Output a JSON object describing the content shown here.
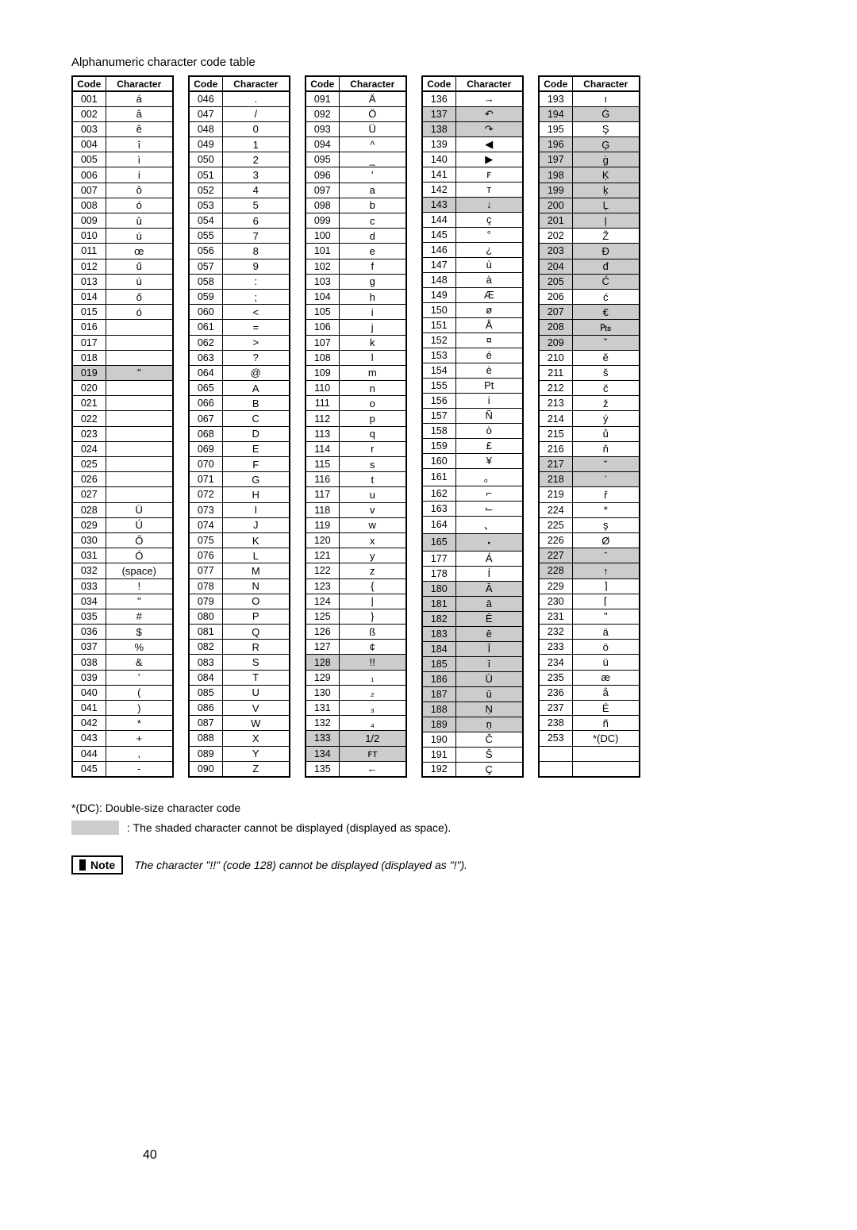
{
  "title": "Alphanumeric character code table",
  "headers": {
    "code": "Code",
    "character": "Character"
  },
  "columns": [
    [
      {
        "code": "001",
        "char": "á"
      },
      {
        "code": "002",
        "char": "â"
      },
      {
        "code": "003",
        "char": "ê"
      },
      {
        "code": "004",
        "char": "î"
      },
      {
        "code": "005",
        "char": "ì"
      },
      {
        "code": "006",
        "char": "í"
      },
      {
        "code": "007",
        "char": "ô"
      },
      {
        "code": "008",
        "char": "ó"
      },
      {
        "code": "009",
        "char": "û"
      },
      {
        "code": "010",
        "char": "ú"
      },
      {
        "code": "011",
        "char": "œ"
      },
      {
        "code": "012",
        "char": "ű"
      },
      {
        "code": "013",
        "char": "ú"
      },
      {
        "code": "014",
        "char": "ő"
      },
      {
        "code": "015",
        "char": "ó"
      },
      {
        "code": "016",
        "char": ""
      },
      {
        "code": "017",
        "char": ""
      },
      {
        "code": "018",
        "char": ""
      },
      {
        "code": "019",
        "char": "\"",
        "shaded": true
      },
      {
        "code": "020",
        "char": ""
      },
      {
        "code": "021",
        "char": ""
      },
      {
        "code": "022",
        "char": ""
      },
      {
        "code": "023",
        "char": ""
      },
      {
        "code": "024",
        "char": ""
      },
      {
        "code": "025",
        "char": ""
      },
      {
        "code": "026",
        "char": ""
      },
      {
        "code": "027",
        "char": ""
      },
      {
        "code": "028",
        "char": "Ü"
      },
      {
        "code": "029",
        "char": "Ú"
      },
      {
        "code": "030",
        "char": "Ő"
      },
      {
        "code": "031",
        "char": "Ó"
      },
      {
        "code": "032",
        "char": "(space)"
      },
      {
        "code": "033",
        "char": "!"
      },
      {
        "code": "034",
        "char": "\""
      },
      {
        "code": "035",
        "char": "#"
      },
      {
        "code": "036",
        "char": "$"
      },
      {
        "code": "037",
        "char": "%"
      },
      {
        "code": "038",
        "char": "&"
      },
      {
        "code": "039",
        "char": "'"
      },
      {
        "code": "040",
        "char": "("
      },
      {
        "code": "041",
        "char": ")"
      },
      {
        "code": "042",
        "char": "*"
      },
      {
        "code": "043",
        "char": "+"
      },
      {
        "code": "044",
        "char": ","
      },
      {
        "code": "045",
        "char": "-"
      }
    ],
    [
      {
        "code": "046",
        "char": "."
      },
      {
        "code": "047",
        "char": "/"
      },
      {
        "code": "048",
        "char": "0"
      },
      {
        "code": "049",
        "char": "1"
      },
      {
        "code": "050",
        "char": "2"
      },
      {
        "code": "051",
        "char": "3"
      },
      {
        "code": "052",
        "char": "4"
      },
      {
        "code": "053",
        "char": "5"
      },
      {
        "code": "054",
        "char": "6"
      },
      {
        "code": "055",
        "char": "7"
      },
      {
        "code": "056",
        "char": "8"
      },
      {
        "code": "057",
        "char": "9"
      },
      {
        "code": "058",
        "char": ":"
      },
      {
        "code": "059",
        "char": ";"
      },
      {
        "code": "060",
        "char": "<"
      },
      {
        "code": "061",
        "char": "="
      },
      {
        "code": "062",
        "char": ">"
      },
      {
        "code": "063",
        "char": "?"
      },
      {
        "code": "064",
        "char": "@"
      },
      {
        "code": "065",
        "char": "A"
      },
      {
        "code": "066",
        "char": "B"
      },
      {
        "code": "067",
        "char": "C"
      },
      {
        "code": "068",
        "char": "D"
      },
      {
        "code": "069",
        "char": "E"
      },
      {
        "code": "070",
        "char": "F"
      },
      {
        "code": "071",
        "char": "G"
      },
      {
        "code": "072",
        "char": "H"
      },
      {
        "code": "073",
        "char": "I"
      },
      {
        "code": "074",
        "char": "J"
      },
      {
        "code": "075",
        "char": "K"
      },
      {
        "code": "076",
        "char": "L"
      },
      {
        "code": "077",
        "char": "M"
      },
      {
        "code": "078",
        "char": "N"
      },
      {
        "code": "079",
        "char": "O"
      },
      {
        "code": "080",
        "char": "P"
      },
      {
        "code": "081",
        "char": "Q"
      },
      {
        "code": "082",
        "char": "R"
      },
      {
        "code": "083",
        "char": "S"
      },
      {
        "code": "084",
        "char": "T"
      },
      {
        "code": "085",
        "char": "U"
      },
      {
        "code": "086",
        "char": "V"
      },
      {
        "code": "087",
        "char": "W"
      },
      {
        "code": "088",
        "char": "X"
      },
      {
        "code": "089",
        "char": "Y"
      },
      {
        "code": "090",
        "char": "Z"
      }
    ],
    [
      {
        "code": "091",
        "char": "Ä"
      },
      {
        "code": "092",
        "char": "Ö"
      },
      {
        "code": "093",
        "char": "Ü"
      },
      {
        "code": "094",
        "char": "^"
      },
      {
        "code": "095",
        "char": "_"
      },
      {
        "code": "096",
        "char": "'"
      },
      {
        "code": "097",
        "char": "a"
      },
      {
        "code": "098",
        "char": "b"
      },
      {
        "code": "099",
        "char": "c"
      },
      {
        "code": "100",
        "char": "d"
      },
      {
        "code": "101",
        "char": "e"
      },
      {
        "code": "102",
        "char": "f"
      },
      {
        "code": "103",
        "char": "g"
      },
      {
        "code": "104",
        "char": "h"
      },
      {
        "code": "105",
        "char": "i"
      },
      {
        "code": "106",
        "char": "j"
      },
      {
        "code": "107",
        "char": "k"
      },
      {
        "code": "108",
        "char": "l"
      },
      {
        "code": "109",
        "char": "m"
      },
      {
        "code": "110",
        "char": "n"
      },
      {
        "code": "111",
        "char": "o"
      },
      {
        "code": "112",
        "char": "p"
      },
      {
        "code": "113",
        "char": "q"
      },
      {
        "code": "114",
        "char": "r"
      },
      {
        "code": "115",
        "char": "s"
      },
      {
        "code": "116",
        "char": "t"
      },
      {
        "code": "117",
        "char": "u"
      },
      {
        "code": "118",
        "char": "v"
      },
      {
        "code": "119",
        "char": "w"
      },
      {
        "code": "120",
        "char": "x"
      },
      {
        "code": "121",
        "char": "y"
      },
      {
        "code": "122",
        "char": "z"
      },
      {
        "code": "123",
        "char": "{"
      },
      {
        "code": "124",
        "char": "|"
      },
      {
        "code": "125",
        "char": "}"
      },
      {
        "code": "126",
        "char": "ß"
      },
      {
        "code": "127",
        "char": "¢"
      },
      {
        "code": "128",
        "char": "!!",
        "shaded": true
      },
      {
        "code": "129",
        "char": "₁"
      },
      {
        "code": "130",
        "char": "₂"
      },
      {
        "code": "131",
        "char": "₃"
      },
      {
        "code": "132",
        "char": "₄"
      },
      {
        "code": "133",
        "char": "1/2",
        "shaded": true
      },
      {
        "code": "134",
        "char": "ꜰᴛ",
        "shaded": true
      },
      {
        "code": "135",
        "char": "←"
      }
    ],
    [
      {
        "code": "136",
        "char": "→"
      },
      {
        "code": "137",
        "char": "↶",
        "shaded": true
      },
      {
        "code": "138",
        "char": "↷",
        "shaded": true
      },
      {
        "code": "139",
        "char": "◀"
      },
      {
        "code": "140",
        "char": "▶"
      },
      {
        "code": "141",
        "char": "ꜰ"
      },
      {
        "code": "142",
        "char": "ᴛ"
      },
      {
        "code": "143",
        "char": "↓",
        "shaded": true
      },
      {
        "code": "144",
        "char": "ç"
      },
      {
        "code": "145",
        "char": "°"
      },
      {
        "code": "146",
        "char": "¿"
      },
      {
        "code": "147",
        "char": "ù"
      },
      {
        "code": "148",
        "char": "à"
      },
      {
        "code": "149",
        "char": "Æ"
      },
      {
        "code": "150",
        "char": "ø"
      },
      {
        "code": "151",
        "char": "Å"
      },
      {
        "code": "152",
        "char": "¤"
      },
      {
        "code": "153",
        "char": "é"
      },
      {
        "code": "154",
        "char": "è"
      },
      {
        "code": "155",
        "char": "Pt"
      },
      {
        "code": "156",
        "char": "i"
      },
      {
        "code": "157",
        "char": "Ñ"
      },
      {
        "code": "158",
        "char": "ò"
      },
      {
        "code": "159",
        "char": "£"
      },
      {
        "code": "160",
        "char": "¥"
      },
      {
        "code": "161",
        "char": "。"
      },
      {
        "code": "162",
        "char": "⌐"
      },
      {
        "code": "163",
        "char": "⌙"
      },
      {
        "code": "164",
        "char": "、"
      },
      {
        "code": "165",
        "char": "・",
        "shaded": true
      },
      {
        "code": "177",
        "char": "Á"
      },
      {
        "code": "178",
        "char": "Í"
      },
      {
        "code": "180",
        "char": "Ā",
        "shaded": true
      },
      {
        "code": "181",
        "char": "ā",
        "shaded": true
      },
      {
        "code": "182",
        "char": "Ē",
        "shaded": true
      },
      {
        "code": "183",
        "char": "ē",
        "shaded": true
      },
      {
        "code": "184",
        "char": "Ī",
        "shaded": true
      },
      {
        "code": "185",
        "char": "ī",
        "shaded": true
      },
      {
        "code": "186",
        "char": "Ū",
        "shaded": true
      },
      {
        "code": "187",
        "char": "ū",
        "shaded": true
      },
      {
        "code": "188",
        "char": "Ņ",
        "shaded": true
      },
      {
        "code": "189",
        "char": "ņ",
        "shaded": true
      },
      {
        "code": "190",
        "char": "Č"
      },
      {
        "code": "191",
        "char": "Š"
      },
      {
        "code": "192",
        "char": "Ç"
      }
    ],
    [
      {
        "code": "193",
        "char": "ı"
      },
      {
        "code": "194",
        "char": "Ġ",
        "shaded": true
      },
      {
        "code": "195",
        "char": "Ş"
      },
      {
        "code": "196",
        "char": "Ģ",
        "shaded": true
      },
      {
        "code": "197",
        "char": "ġ",
        "shaded": true
      },
      {
        "code": "198",
        "char": "Ķ",
        "shaded": true
      },
      {
        "code": "199",
        "char": "ķ",
        "shaded": true
      },
      {
        "code": "200",
        "char": "Ļ",
        "shaded": true
      },
      {
        "code": "201",
        "char": "ļ",
        "shaded": true
      },
      {
        "code": "202",
        "char": "Ž"
      },
      {
        "code": "203",
        "char": "Đ",
        "shaded": true
      },
      {
        "code": "204",
        "char": "đ",
        "shaded": true
      },
      {
        "code": "205",
        "char": "Ć",
        "shaded": true
      },
      {
        "code": "206",
        "char": "ć"
      },
      {
        "code": "207",
        "char": "€",
        "shaded": true
      },
      {
        "code": "208",
        "char": "₧",
        "shaded": true
      },
      {
        "code": "209",
        "char": "˘",
        "shaded": true
      },
      {
        "code": "210",
        "char": "ĕ"
      },
      {
        "code": "211",
        "char": "š"
      },
      {
        "code": "212",
        "char": "č"
      },
      {
        "code": "213",
        "char": "ž"
      },
      {
        "code": "214",
        "char": "ý"
      },
      {
        "code": "215",
        "char": "ů"
      },
      {
        "code": "216",
        "char": "ň"
      },
      {
        "code": "217",
        "char": "˘",
        "shaded": true
      },
      {
        "code": "218",
        "char": "ˊ",
        "shaded": true
      },
      {
        "code": "219",
        "char": "ř"
      },
      {
        "code": "224",
        "char": "*"
      },
      {
        "code": "225",
        "char": "ş"
      },
      {
        "code": "226",
        "char": "Ø"
      },
      {
        "code": "227",
        "char": "ˆ",
        "shaded": true
      },
      {
        "code": "228",
        "char": "↑",
        "shaded": true
      },
      {
        "code": "229",
        "char": "⌉"
      },
      {
        "code": "230",
        "char": "⌈"
      },
      {
        "code": "231",
        "char": "\""
      },
      {
        "code": "232",
        "char": "ä"
      },
      {
        "code": "233",
        "char": "ö"
      },
      {
        "code": "234",
        "char": "ü"
      },
      {
        "code": "235",
        "char": "æ"
      },
      {
        "code": "236",
        "char": "å"
      },
      {
        "code": "237",
        "char": "É"
      },
      {
        "code": "238",
        "char": "ñ"
      },
      {
        "code": "253",
        "char": "*(DC)"
      },
      {
        "code": "",
        "char": ""
      },
      {
        "code": "",
        "char": ""
      }
    ]
  ],
  "footnote": "*(DC): Double-size character code",
  "legend": ": The shaded character cannot be displayed (displayed as space).",
  "note_label": "Note",
  "note_text": "The character \"!!\" (code 128) cannot be displayed (displayed as \"!\").",
  "page_number": "40"
}
